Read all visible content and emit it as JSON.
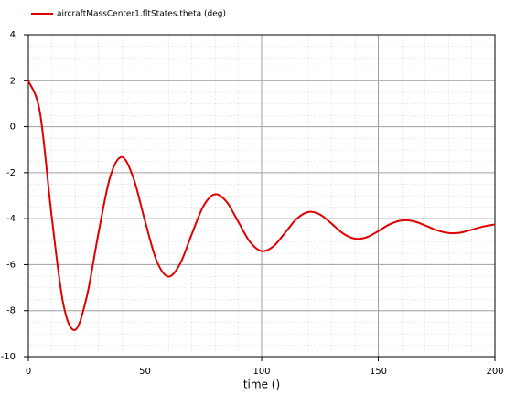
{
  "chart_data": {
    "type": "line",
    "x": [
      0,
      5,
      10,
      15,
      20,
      25,
      30,
      35,
      40,
      45,
      50,
      55,
      60,
      65,
      70,
      75,
      80,
      85,
      90,
      95,
      100,
      105,
      110,
      115,
      120,
      125,
      130,
      135,
      140,
      145,
      150,
      155,
      160,
      165,
      170,
      175,
      180,
      185,
      190,
      195,
      200
    ],
    "series": [
      {
        "name": "aircraftMassCenter1.fltStates.theta (deg)",
        "color": "#e00000",
        "values": [
          2.0,
          0.6,
          -3.9,
          -7.72,
          -8.84,
          -7.41,
          -4.66,
          -2.21,
          -1.32,
          -2.22,
          -4.1,
          -5.84,
          -6.52,
          -5.97,
          -4.69,
          -3.46,
          -2.94,
          -3.27,
          -4.14,
          -5.01,
          -5.41,
          -5.21,
          -4.62,
          -4.01,
          -3.71,
          -3.82,
          -4.22,
          -4.65,
          -4.87,
          -4.81,
          -4.54,
          -4.24,
          -4.08,
          -4.11,
          -4.29,
          -4.5,
          -4.62,
          -4.61,
          -4.48,
          -4.34,
          -4.25
        ]
      }
    ],
    "x_label": "time ()",
    "xlim": [
      0,
      200
    ],
    "xticks": [
      0,
      50,
      100,
      150,
      200
    ],
    "ylim": [
      -10,
      4
    ],
    "yticks": [
      -10,
      -8,
      -6,
      -4,
      -2,
      0,
      2,
      4
    ],
    "grid": true,
    "legend": "top-left"
  }
}
